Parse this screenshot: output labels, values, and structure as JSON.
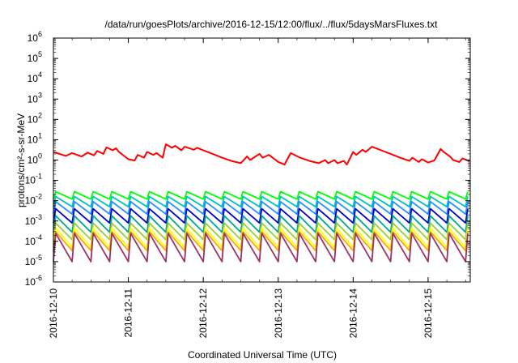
{
  "chart_data": {
    "type": "line",
    "title": "/data/run/goesPlots/archive/2016-12-15/12:00/flux/../flux/5daysMarsFluxes.txt",
    "xlabel": "Coordinated Universal Time (UTC)",
    "ylabel": "protons/cm²-s-sr-MeV",
    "yscale": "log",
    "ylim": [
      1e-06,
      1000000.0
    ],
    "xlim": [
      "2016-12-10T00:00",
      "2016-12-15T13:30"
    ],
    "yticks": [
      {
        "base": "10",
        "exp": "-6"
      },
      {
        "base": "10",
        "exp": "-5"
      },
      {
        "base": "10",
        "exp": "-4"
      },
      {
        "base": "10",
        "exp": "-3"
      },
      {
        "base": "10",
        "exp": "-2"
      },
      {
        "base": "10",
        "exp": "-1"
      },
      {
        "base": "10",
        "exp": "0"
      },
      {
        "base": "10",
        "exp": "1"
      },
      {
        "base": "10",
        "exp": "2"
      },
      {
        "base": "10",
        "exp": "3"
      },
      {
        "base": "10",
        "exp": "4"
      },
      {
        "base": "10",
        "exp": "5"
      },
      {
        "base": "10",
        "exp": "6"
      }
    ],
    "xticks": [
      "2016-12-10",
      "2016-12-11",
      "2016-12-12",
      "2016-12-13",
      "2016-12-14",
      "2016-12-15"
    ],
    "grid": false,
    "legend": "none",
    "series": [
      {
        "color": "#ff0000",
        "x": [
          "2016-12-10T00:00",
          "2016-12-10T04:00",
          "2016-12-10T06:00",
          "2016-12-10T09:00",
          "2016-12-10T11:00",
          "2016-12-10T13:00",
          "2016-12-10T14:00",
          "2016-12-10T16:00",
          "2016-12-10T17:00",
          "2016-12-10T19:00",
          "2016-12-10T20:00",
          "2016-12-10T21:00",
          "2016-12-11T00:00",
          "2016-12-11T02:00",
          "2016-12-11T03:00",
          "2016-12-11T05:00",
          "2016-12-11T06:00",
          "2016-12-11T08:00",
          "2016-12-11T09:00",
          "2016-12-11T11:00",
          "2016-12-11T12:00",
          "2016-12-11T14:00",
          "2016-12-11T15:00",
          "2016-12-11T17:00",
          "2016-12-11T18:00",
          "2016-12-11T21:00",
          "2016-12-11T22:00",
          "2016-12-12T00:00",
          "2016-12-12T03:00",
          "2016-12-12T06:00",
          "2016-12-12T09:00",
          "2016-12-12T12:00",
          "2016-12-12T14:00",
          "2016-12-12T15:00",
          "2016-12-12T18:00",
          "2016-12-12T19:00",
          "2016-12-12T21:00",
          "2016-12-13T00:00",
          "2016-12-13T02:00",
          "2016-12-13T04:00",
          "2016-12-13T07:00",
          "2016-12-13T10:00",
          "2016-12-13T13:00",
          "2016-12-13T15:00",
          "2016-12-13T16:00",
          "2016-12-13T18:00",
          "2016-12-13T19:00",
          "2016-12-13T21:00",
          "2016-12-13T22:00",
          "2016-12-14T00:00",
          "2016-12-14T01:00",
          "2016-12-14T03:00",
          "2016-12-14T04:00",
          "2016-12-14T06:00",
          "2016-12-14T09:00",
          "2016-12-14T12:00",
          "2016-12-14T15:00",
          "2016-12-14T18:00",
          "2016-12-14T19:00",
          "2016-12-14T21:00",
          "2016-12-14T22:00",
          "2016-12-15T00:00",
          "2016-12-15T02:00",
          "2016-12-15T04:00",
          "2016-12-15T05:00",
          "2016-12-15T07:00",
          "2016-12-15T08:00",
          "2016-12-15T10:00",
          "2016-12-15T11:00",
          "2016-12-15T13:00"
        ],
        "values": [
          2.5,
          1.6,
          2.2,
          1.5,
          2.3,
          1.7,
          2.8,
          2.0,
          4.2,
          3.0,
          3.8,
          2.5,
          1.1,
          0.95,
          1.8,
          1.3,
          2.5,
          1.8,
          2.2,
          1.3,
          6.0,
          4.0,
          5.0,
          3.0,
          4.5,
          3.2,
          4.0,
          3.0,
          2.0,
          1.3,
          0.9,
          0.7,
          1.5,
          1.0,
          2.0,
          1.3,
          1.8,
          0.8,
          0.6,
          2.2,
          1.3,
          0.9,
          0.7,
          1.0,
          0.7,
          1.0,
          0.7,
          0.9,
          0.6,
          2.5,
          1.8,
          3.2,
          2.5,
          4.5,
          3.0,
          2.0,
          1.3,
          0.9,
          1.3,
          0.8,
          1.1,
          0.75,
          0.95,
          3.5,
          2.5,
          1.5,
          1.0,
          0.8,
          1.2,
          0.9
        ]
      }
    ],
    "cycle_series": [
      {
        "color": "#00ff00",
        "peak": 0.028,
        "trough": 0.012
      },
      {
        "color": "#00c0c0",
        "peak": 0.016,
        "trough": 0.005
      },
      {
        "color": "#1e90ff",
        "peak": 0.009,
        "trough": 0.0022
      },
      {
        "color": "#0000c8",
        "peak": 0.004,
        "trough": 0.0008
      },
      {
        "color": "#00a890",
        "peak": 0.0018,
        "trough": 0.00028
      },
      {
        "color": "#9acd32",
        "peak": 0.0008,
        "trough": 0.00012
      },
      {
        "color": "#ffff00",
        "peak": 0.00045,
        "trough": 5e-05
      },
      {
        "color": "#ffa500",
        "peak": 0.0003,
        "trough": 3.5e-05
      },
      {
        "color": "#993366",
        "peak": 0.00025,
        "trough": 1e-05
      }
    ],
    "cycle_period_hours": 6
  }
}
